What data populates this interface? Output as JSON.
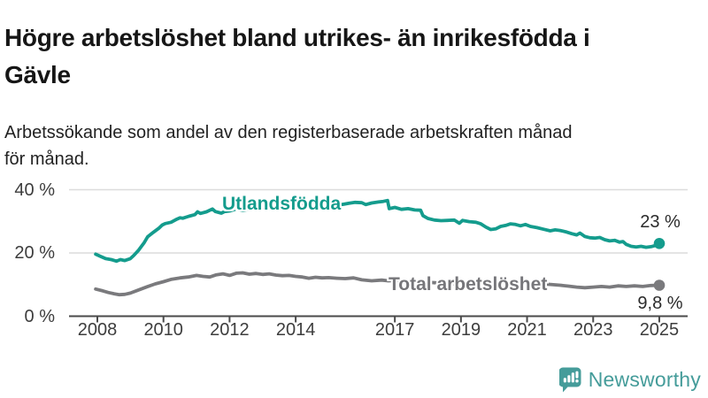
{
  "header": {
    "title_lines": [
      "Högre arbetslöshet bland utrikes- än inrikesfödda i",
      "Gävle"
    ],
    "subtitle_lines": [
      "Arbetssökande som andel av den registerbaserade arbetskraften månad",
      "för månad."
    ]
  },
  "chart_data": {
    "type": "line",
    "title": "Högre arbetslöshet bland utrikes- än inrikesfödda i Gävle",
    "subtitle": "Arbetssökande som andel av den registerbaserade arbetskraften månad för månad.",
    "grid": "horizontal",
    "x_axis": {
      "range": [
        2007.9,
        2025.3
      ],
      "ticks": [
        {
          "year": 2008,
          "label": "2008"
        },
        {
          "year": 2010,
          "label": "2010"
        },
        {
          "year": 2012,
          "label": "2012"
        },
        {
          "year": 2014,
          "label": "2014"
        },
        {
          "year": 2017,
          "label": "2017"
        },
        {
          "year": 2019,
          "label": "2019"
        },
        {
          "year": 2021,
          "label": "2021"
        },
        {
          "year": 2023,
          "label": "2023"
        },
        {
          "year": 2025,
          "label": "2025"
        }
      ]
    },
    "y_axis": {
      "range": [
        0,
        40
      ],
      "unit": "%",
      "ticks": [
        {
          "value": 0,
          "label": "0 %"
        },
        {
          "value": 20,
          "label": "20 %"
        },
        {
          "value": 40,
          "label": "40 %"
        }
      ]
    },
    "series": [
      {
        "name": "Utlandsfödda",
        "color": "#149c8d",
        "end_value_label": "23 %",
        "points": [
          [
            2007.95,
            19.6
          ],
          [
            2008.08,
            19.0
          ],
          [
            2008.25,
            18.2
          ],
          [
            2008.42,
            17.9
          ],
          [
            2008.58,
            17.4
          ],
          [
            2008.7,
            17.9
          ],
          [
            2008.83,
            17.6
          ],
          [
            2009.0,
            18.2
          ],
          [
            2009.1,
            19.2
          ],
          [
            2009.25,
            20.9
          ],
          [
            2009.42,
            23.3
          ],
          [
            2009.52,
            25.1
          ],
          [
            2009.69,
            26.5
          ],
          [
            2009.87,
            27.9
          ],
          [
            2009.96,
            28.8
          ],
          [
            2010.05,
            29.3
          ],
          [
            2010.23,
            29.7
          ],
          [
            2010.41,
            30.7
          ],
          [
            2010.5,
            31.1
          ],
          [
            2010.59,
            31.0
          ],
          [
            2010.77,
            31.6
          ],
          [
            2010.95,
            32.1
          ],
          [
            2011.03,
            33.0
          ],
          [
            2011.12,
            32.5
          ],
          [
            2011.3,
            33.0
          ],
          [
            2011.48,
            33.9
          ],
          [
            2011.57,
            33.1
          ],
          [
            2011.75,
            32.6
          ],
          [
            2011.85,
            33.1
          ],
          [
            2012.0,
            33.3
          ],
          [
            2012.2,
            33.9
          ],
          [
            2012.4,
            33.5
          ],
          [
            2012.6,
            33.8
          ],
          [
            2012.8,
            34.1
          ],
          [
            2013.0,
            34.3
          ],
          [
            2013.2,
            33.9
          ],
          [
            2013.4,
            34.4
          ],
          [
            2013.6,
            34.2
          ],
          [
            2013.8,
            34.6
          ],
          [
            2014.0,
            34.5
          ],
          [
            2014.2,
            35.0
          ],
          [
            2014.4,
            34.7
          ],
          [
            2014.6,
            35.1
          ],
          [
            2014.8,
            35.0
          ],
          [
            2015.0,
            35.2
          ],
          [
            2015.2,
            35.4
          ],
          [
            2015.4,
            35.3
          ],
          [
            2015.6,
            35.7
          ],
          [
            2015.8,
            36.0
          ],
          [
            2016.0,
            35.9
          ],
          [
            2016.12,
            35.3
          ],
          [
            2016.3,
            35.8
          ],
          [
            2016.5,
            36.1
          ],
          [
            2016.65,
            36.3
          ],
          [
            2016.78,
            36.6
          ],
          [
            2016.83,
            34.0
          ],
          [
            2017.0,
            34.4
          ],
          [
            2017.2,
            33.8
          ],
          [
            2017.4,
            34.0
          ],
          [
            2017.6,
            33.6
          ],
          [
            2017.78,
            33.5
          ],
          [
            2017.85,
            31.8
          ],
          [
            2018.0,
            30.9
          ],
          [
            2018.2,
            30.4
          ],
          [
            2018.4,
            30.2
          ],
          [
            2018.6,
            30.3
          ],
          [
            2018.8,
            30.4
          ],
          [
            2018.95,
            29.4
          ],
          [
            2019.05,
            30.3
          ],
          [
            2019.25,
            29.9
          ],
          [
            2019.45,
            29.7
          ],
          [
            2019.6,
            29.2
          ],
          [
            2019.75,
            28.2
          ],
          [
            2019.9,
            27.4
          ],
          [
            2020.05,
            27.6
          ],
          [
            2020.2,
            28.4
          ],
          [
            2020.35,
            28.7
          ],
          [
            2020.5,
            29.2
          ],
          [
            2020.65,
            29.0
          ],
          [
            2020.8,
            28.6
          ],
          [
            2020.95,
            29.0
          ],
          [
            2021.1,
            28.4
          ],
          [
            2021.3,
            28.0
          ],
          [
            2021.5,
            27.5
          ],
          [
            2021.7,
            27.0
          ],
          [
            2021.85,
            27.3
          ],
          [
            2022.0,
            27.1
          ],
          [
            2022.2,
            26.6
          ],
          [
            2022.35,
            26.1
          ],
          [
            2022.5,
            25.7
          ],
          [
            2022.6,
            26.3
          ],
          [
            2022.75,
            25.2
          ],
          [
            2022.9,
            24.8
          ],
          [
            2023.05,
            24.7
          ],
          [
            2023.2,
            24.9
          ],
          [
            2023.35,
            24.2
          ],
          [
            2023.5,
            23.8
          ],
          [
            2023.65,
            24.0
          ],
          [
            2023.8,
            23.4
          ],
          [
            2023.9,
            23.6
          ],
          [
            2024.0,
            22.7
          ],
          [
            2024.15,
            22.1
          ],
          [
            2024.3,
            21.9
          ],
          [
            2024.45,
            22.1
          ],
          [
            2024.6,
            21.8
          ],
          [
            2024.75,
            22.0
          ],
          [
            2024.9,
            22.4
          ],
          [
            2025.0,
            23.0
          ]
        ]
      },
      {
        "name": "Total arbetslöshet",
        "color": "#7a7a7d",
        "end_value_label": "9,8 %",
        "points": [
          [
            2007.95,
            8.6
          ],
          [
            2008.17,
            8.0
          ],
          [
            2008.33,
            7.5
          ],
          [
            2008.5,
            7.1
          ],
          [
            2008.67,
            6.8
          ],
          [
            2008.83,
            6.9
          ],
          [
            2009.0,
            7.3
          ],
          [
            2009.25,
            8.3
          ],
          [
            2009.5,
            9.3
          ],
          [
            2009.75,
            10.2
          ],
          [
            2010.0,
            10.9
          ],
          [
            2010.25,
            11.7
          ],
          [
            2010.5,
            12.1
          ],
          [
            2010.75,
            12.4
          ],
          [
            2011.0,
            12.9
          ],
          [
            2011.2,
            12.6
          ],
          [
            2011.4,
            12.4
          ],
          [
            2011.6,
            13.1
          ],
          [
            2011.8,
            13.4
          ],
          [
            2012.0,
            12.9
          ],
          [
            2012.2,
            13.6
          ],
          [
            2012.4,
            13.7
          ],
          [
            2012.6,
            13.3
          ],
          [
            2012.8,
            13.5
          ],
          [
            2013.0,
            13.2
          ],
          [
            2013.2,
            13.4
          ],
          [
            2013.4,
            13.0
          ],
          [
            2013.6,
            12.8
          ],
          [
            2013.8,
            12.9
          ],
          [
            2014.0,
            12.6
          ],
          [
            2014.2,
            12.4
          ],
          [
            2014.4,
            12.0
          ],
          [
            2014.6,
            12.3
          ],
          [
            2014.8,
            12.1
          ],
          [
            2015.0,
            12.2
          ],
          [
            2015.25,
            12.0
          ],
          [
            2015.5,
            11.9
          ],
          [
            2015.75,
            12.1
          ],
          [
            2016.0,
            11.5
          ],
          [
            2016.3,
            11.2
          ],
          [
            2016.6,
            11.4
          ],
          [
            2016.8,
            11.2
          ],
          [
            2017.0,
            11.3
          ],
          [
            2017.3,
            11.1
          ],
          [
            2017.6,
            10.9
          ],
          [
            2018.0,
            10.7
          ],
          [
            2018.5,
            10.4
          ],
          [
            2019.0,
            10.2
          ],
          [
            2019.5,
            10.0
          ],
          [
            2019.9,
            10.2
          ],
          [
            2020.3,
            11.0
          ],
          [
            2020.7,
            10.8
          ],
          [
            2021.0,
            10.6
          ],
          [
            2021.5,
            10.2
          ],
          [
            2022.0,
            9.8
          ],
          [
            2022.25,
            9.5
          ],
          [
            2022.5,
            9.2
          ],
          [
            2022.75,
            9.0
          ],
          [
            2023.0,
            9.2
          ],
          [
            2023.25,
            9.4
          ],
          [
            2023.5,
            9.2
          ],
          [
            2023.75,
            9.6
          ],
          [
            2024.0,
            9.4
          ],
          [
            2024.25,
            9.6
          ],
          [
            2024.5,
            9.4
          ],
          [
            2024.75,
            9.7
          ],
          [
            2025.0,
            9.8
          ]
        ]
      }
    ],
    "colors": {
      "grid": "#dcdcdc",
      "axis": "#4a4a4a",
      "tick_text": "#3d3d3d"
    }
  },
  "footer": {
    "brand": "Newsworthy",
    "brand_color": "#459c9a",
    "logo_icon": "bar-chart-speech-bubble-icon"
  }
}
